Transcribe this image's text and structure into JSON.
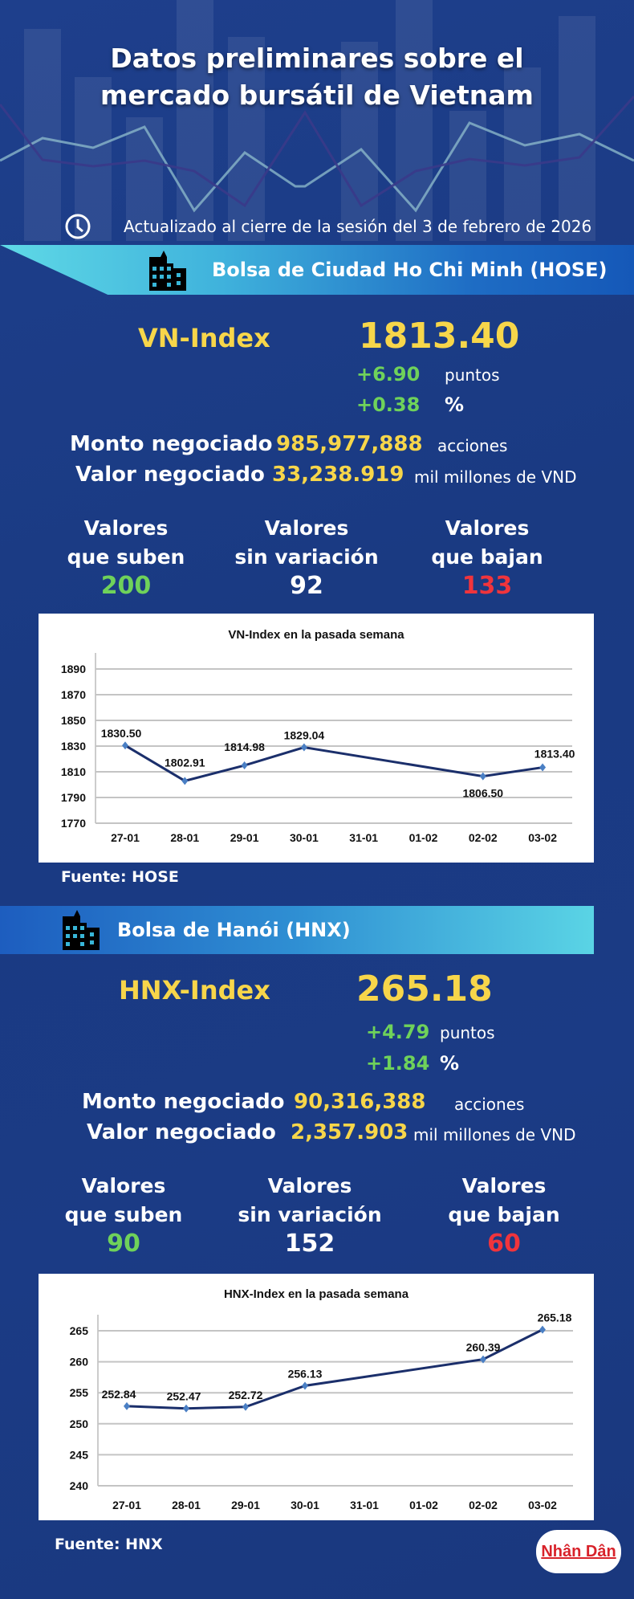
{
  "header": {
    "title_line1": "Datos preliminares sobre el",
    "title_line2": "mercado bursátil de Vietnam",
    "updated": "Actualizado al cierre de la sesión del 3 de febrero de 2026",
    "clock_icon": "clock-icon"
  },
  "hose": {
    "exchange": "Bolsa de Ciudad Ho Chi Minh (HOSE)",
    "index_name": "VN-Index",
    "index_value": "1813.40",
    "change_points": "+6.90",
    "points_unit": "puntos",
    "change_percent": "+0.38",
    "percent_unit": "%",
    "volume_label": "Monto negociado",
    "volume_value": "985,977,888",
    "volume_unit": "acciones",
    "value_label": "Valor negociado",
    "value_value": "33,238.919",
    "value_unit": "mil millones de VND",
    "up_label1": "Valores",
    "up_label2": "que suben",
    "up_count": "200",
    "flat_label1": "Valores",
    "flat_label2": "sin variación",
    "flat_count": "92",
    "down_label1": "Valores",
    "down_label2": "que bajan",
    "down_count": "133",
    "source": "Fuente: HOSE"
  },
  "hnx": {
    "exchange": "Bolsa de Hanói (HNX)",
    "index_name": "HNX-Index",
    "index_value": "265.18",
    "change_points": "+4.79",
    "points_unit": "puntos",
    "change_percent": "+1.84",
    "percent_unit": "%",
    "volume_label": "Monto negociado",
    "volume_value": "90,316,388",
    "volume_unit": "acciones",
    "value_label": "Valor negociado",
    "value_value": "2,357.903",
    "value_unit": "mil millones de VND",
    "up_label1": "Valores",
    "up_label2": "que suben",
    "up_count": "90",
    "flat_label1": "Valores",
    "flat_label2": "sin variación",
    "flat_count": "152",
    "down_label1": "Valores",
    "down_label2": "que bajan",
    "down_count": "60",
    "source": "Fuente:  HNX"
  },
  "colors": {
    "up": "#6fd25a",
    "down": "#f0343c",
    "highlight": "#f7d64a",
    "line": "#1b2f6b",
    "marker": "#4a7fc4"
  },
  "logo": "Nhân Dân",
  "chart_data": [
    {
      "type": "line",
      "title": "VN-Index en la pasada semana",
      "categories": [
        "27-01",
        "28-01",
        "29-01",
        "30-01",
        "31-01",
        "01-02",
        "02-02",
        "03-02"
      ],
      "values": [
        1830.5,
        1802.91,
        1814.98,
        1829.04,
        null,
        null,
        1806.5,
        1813.4
      ],
      "labels": [
        "1830.50",
        "1802.91",
        "1814.98",
        "1829.04",
        "",
        "",
        "1806.50",
        "1813.40"
      ],
      "yticks": [
        "1770",
        "1790",
        "1810",
        "1830",
        "1850",
        "1870",
        "1890"
      ],
      "ylim": [
        1770,
        1890
      ],
      "grid": true
    },
    {
      "type": "line",
      "title": "HNX-Index en la pasada semana",
      "categories": [
        "27-01",
        "28-01",
        "29-01",
        "30-01",
        "31-01",
        "01-02",
        "02-02",
        "03-02"
      ],
      "values": [
        252.84,
        252.47,
        252.72,
        256.13,
        null,
        null,
        260.39,
        265.18
      ],
      "labels": [
        "252.84",
        "252.47",
        "252.72",
        "256.13",
        "",
        "",
        "260.39",
        "265.18"
      ],
      "yticks": [
        "240",
        "245",
        "250",
        "255",
        "260",
        "265"
      ],
      "ylim": [
        240,
        265
      ],
      "grid": true
    }
  ]
}
